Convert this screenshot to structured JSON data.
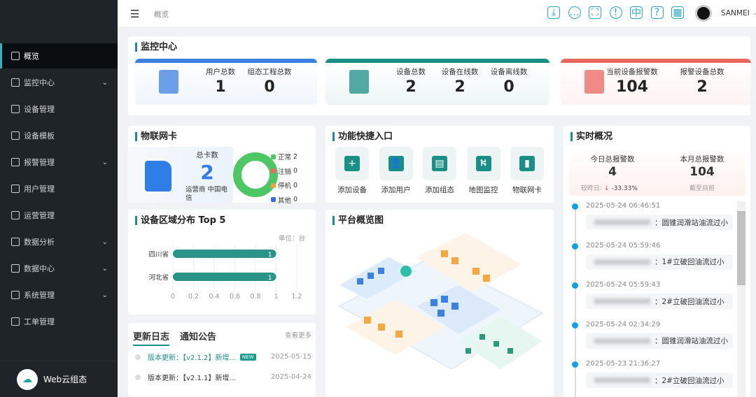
{
  "sidebar": {
    "items": [
      {
        "label": "概览",
        "icon": "grid-icon",
        "active": true
      },
      {
        "label": "监控中心",
        "icon": "monitor-icon",
        "chevron": true
      },
      {
        "label": "设备管理",
        "icon": "device-icon"
      },
      {
        "label": "设备模板",
        "icon": "template-icon"
      },
      {
        "label": "报警管理",
        "icon": "alarm-icon",
        "chevron": true
      },
      {
        "label": "用户管理",
        "icon": "user-icon"
      },
      {
        "label": "运营管理",
        "icon": "operation-icon"
      },
      {
        "label": "数据分析",
        "icon": "chart-icon",
        "chevron": true
      },
      {
        "label": "数据中心",
        "icon": "chart-icon",
        "chevron": true
      },
      {
        "label": "系统管理",
        "icon": "org-icon",
        "chevron": true
      },
      {
        "label": "工单管理",
        "icon": "ticket-icon"
      }
    ],
    "brand": "Web云组态"
  },
  "header": {
    "breadcrumb": "概览",
    "user": "SANMEI",
    "icons": [
      "download-icon",
      "message-icon",
      "fullscreen-icon",
      "info-icon",
      "language-icon",
      "help-book-icon",
      "scan-icon"
    ]
  },
  "monitor": {
    "title": "监控中心",
    "groups": [
      {
        "color": "#3b82e0",
        "stats": [
          {
            "label": "用户总数",
            "value": "1"
          },
          {
            "label": "组态工程总数",
            "value": "0"
          }
        ]
      },
      {
        "color": "#1a8f86",
        "stats": [
          {
            "label": "设备总数",
            "value": "2"
          },
          {
            "label": "设备在线数",
            "value": "2"
          },
          {
            "label": "设备离线数",
            "value": "0"
          }
        ]
      },
      {
        "color": "#e8675e",
        "stats": [
          {
            "label": "当前设备报警数",
            "value": "104"
          },
          {
            "label": "报警设备总数",
            "value": "2"
          }
        ]
      }
    ]
  },
  "sim_card": {
    "title": "物联网卡",
    "total_label": "总卡数",
    "total": "2",
    "operator": "运营商 中国电信",
    "legend": [
      {
        "label": "正常",
        "value": "2",
        "color": "#4cc764"
      },
      {
        "label": "注销",
        "value": "0",
        "color": "#ef6a5e"
      },
      {
        "label": "停机",
        "value": "0",
        "color": "#f0a23c"
      },
      {
        "label": "其他",
        "value": "0",
        "color": "#2f6fe0"
      }
    ]
  },
  "quick": {
    "title": "功能快捷入口",
    "items": [
      {
        "label": "添加设备",
        "icon": "plus-icon"
      },
      {
        "label": "添加用户",
        "icon": "add-user-icon"
      },
      {
        "label": "添加组态",
        "icon": "add-layout-icon"
      },
      {
        "label": "地图监控",
        "icon": "map-icon"
      },
      {
        "label": "物联网卡",
        "icon": "sim-card-icon"
      }
    ]
  },
  "realtime": {
    "title": "实时概况",
    "today_label": "今日总报警数",
    "today": "4",
    "compare_label": "较昨日:",
    "compare": "-33.33%",
    "month_label": "本月总报警数",
    "month": "104",
    "month_sub": "截至目前",
    "events": [
      {
        "time": "2025-05-24 06:46:51",
        "msg": "：圆锥润滑站油流过小"
      },
      {
        "time": "2025-05-24 05:59:46",
        "msg": "：1#立破回油流过小"
      },
      {
        "time": "2025-05-24 05:59:43",
        "msg": "：2#立破回油流过小"
      },
      {
        "time": "2025-05-24 02:34:29",
        "msg": "：圆锥润滑站油流过小"
      },
      {
        "time": "2025-05-23 21:36:27",
        "msg": "：2#立破回油流过小"
      }
    ]
  },
  "region": {
    "title": "设备区域分布 Top 5",
    "unit": "单位：台"
  },
  "chart_data": {
    "type": "bar",
    "orientation": "horizontal",
    "categories": [
      "四川省",
      "河北省"
    ],
    "values": [
      1,
      1
    ],
    "xlim": [
      0,
      1.2
    ],
    "xticks": [
      "0",
      "0.2",
      "0.4",
      "0.6",
      "0.8",
      "1",
      "1.2"
    ],
    "color": "#2a9488",
    "grid": true
  },
  "platform": {
    "title": "平台概览图"
  },
  "updates": {
    "tabs": [
      "更新日志",
      "通知公告"
    ],
    "more": "查看更多",
    "items": [
      {
        "text": "版本更新：【v2.1.2】新增...",
        "badge": "NEW",
        "date": "2025-05-15",
        "highlight": true
      },
      {
        "text": "版本更新：【v2.1.1】新增...",
        "date": "2025-04-24"
      }
    ]
  }
}
